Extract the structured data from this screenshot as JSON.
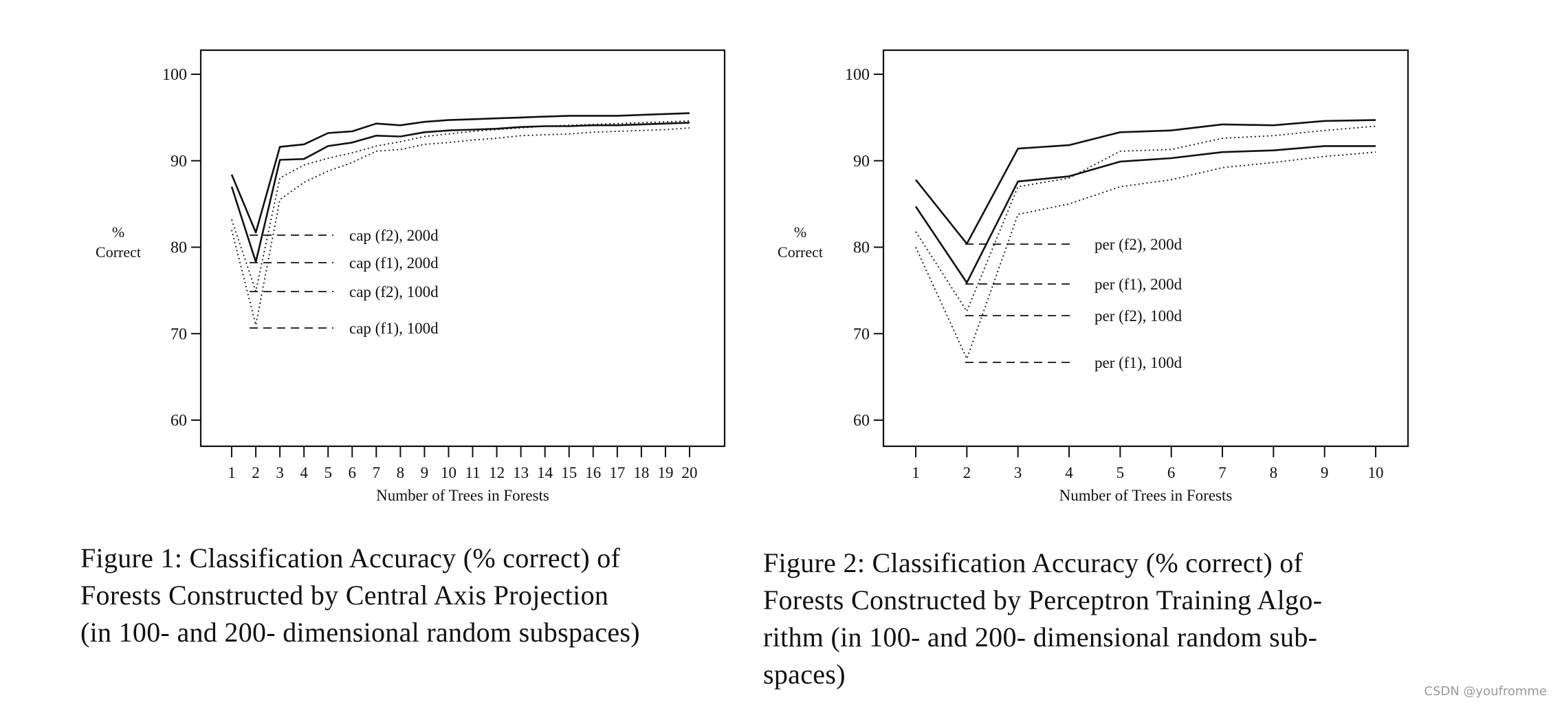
{
  "figures": [
    {
      "caption_lines": [
        "Figure 1:  Classification Accuracy (% correct) of",
        "Forests Constructed by Central Axis Projection",
        "(in 100- and 200- dimensional random subspaces)"
      ]
    },
    {
      "caption_lines": [
        "Figure 2:  Classification Accuracy (% correct) of",
        "Forests Constructed by Perceptron Training Algo-",
        "rithm (in 100- and 200- dimensional random sub-",
        "spaces)"
      ]
    }
  ],
  "watermark": "CSDN @youfromme",
  "chart_data": [
    {
      "type": "line",
      "title": "",
      "xlabel": "Number of Trees in Forests",
      "ylabel_lines": [
        "%",
        "Correct"
      ],
      "ylim": [
        57,
        103
      ],
      "yticks": [
        60,
        70,
        80,
        90,
        100
      ],
      "x": [
        1,
        2,
        3,
        4,
        5,
        6,
        7,
        8,
        9,
        10,
        11,
        12,
        13,
        14,
        15,
        16,
        17,
        18,
        19,
        20
      ],
      "legend_position": "inside-center",
      "series": [
        {
          "name": "cap (f2), 200d",
          "style": "solid",
          "values": [
            88.4,
            81.7,
            91.6,
            91.9,
            93.2,
            93.4,
            94.3,
            94.1,
            94.5,
            94.7,
            94.8,
            94.9,
            95.0,
            95.1,
            95.2,
            95.2,
            95.2,
            95.3,
            95.4,
            95.5
          ]
        },
        {
          "name": "cap (f1), 200d",
          "style": "solid",
          "values": [
            87.0,
            78.3,
            90.1,
            90.2,
            91.7,
            92.1,
            92.9,
            92.8,
            93.3,
            93.5,
            93.6,
            93.7,
            93.9,
            94.0,
            94.0,
            94.1,
            94.1,
            94.2,
            94.3,
            94.4
          ]
        },
        {
          "name": "cap (f2), 100d",
          "style": "dotted",
          "values": [
            83.2,
            74.9,
            88.0,
            89.5,
            90.3,
            90.9,
            91.7,
            92.2,
            92.8,
            93.1,
            93.4,
            93.6,
            93.8,
            94.0,
            94.1,
            94.2,
            94.3,
            94.4,
            94.5,
            94.6
          ]
        },
        {
          "name": "cap (f1), 100d",
          "style": "dotted",
          "values": [
            82.0,
            71.0,
            85.5,
            87.5,
            88.8,
            89.8,
            91.1,
            91.3,
            91.9,
            92.1,
            92.4,
            92.6,
            92.9,
            93.0,
            93.1,
            93.3,
            93.4,
            93.5,
            93.6,
            93.8
          ]
        }
      ]
    },
    {
      "type": "line",
      "title": "",
      "xlabel": "Number of Trees in Forests",
      "ylabel_lines": [
        "%",
        "Correct"
      ],
      "ylim": [
        57,
        103
      ],
      "yticks": [
        60,
        70,
        80,
        90,
        100
      ],
      "x": [
        1,
        2,
        3,
        4,
        5,
        6,
        7,
        8,
        9,
        10
      ],
      "legend_position": "inside-center",
      "series": [
        {
          "name": "per (f2), 200d",
          "style": "solid",
          "values": [
            87.8,
            80.4,
            91.4,
            91.8,
            93.3,
            93.5,
            94.2,
            94.1,
            94.6,
            94.7
          ]
        },
        {
          "name": "per (f1), 200d",
          "style": "solid",
          "values": [
            84.7,
            75.9,
            87.6,
            88.2,
            89.9,
            90.3,
            91.0,
            91.2,
            91.7,
            91.7
          ]
        },
        {
          "name": "per (f2), 100d",
          "style": "dotted",
          "values": [
            81.8,
            72.6,
            87.0,
            88.0,
            91.1,
            91.3,
            92.6,
            92.9,
            93.5,
            94.0
          ]
        },
        {
          "name": "per (f1), 100d",
          "style": "dotted",
          "values": [
            80.0,
            67.1,
            83.8,
            85.0,
            87.0,
            87.8,
            89.2,
            89.8,
            90.5,
            91.0
          ]
        }
      ]
    }
  ]
}
